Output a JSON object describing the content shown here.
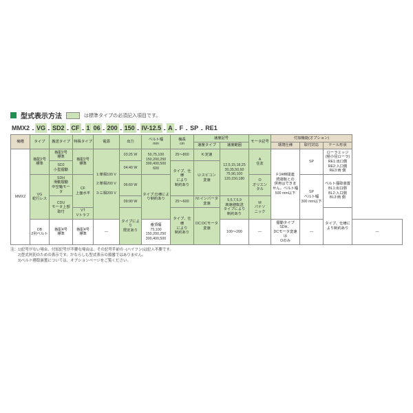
{
  "title": "型式表示方法",
  "legend": "は標準タイプの必須記入項目です。",
  "model_parts": [
    {
      "t": "MMX2",
      "g": false,
      "dash": true
    },
    {
      "t": "VG",
      "g": true,
      "dash": true
    },
    {
      "t": "SD2",
      "g": true,
      "dash": true
    },
    {
      "t": "CF",
      "g": true,
      "dash": true
    },
    {
      "t": "1",
      "g": true,
      "dash": false
    },
    {
      "t": "06",
      "g": true,
      "dash": true
    },
    {
      "t": "200",
      "g": true,
      "dash": true
    },
    {
      "t": "150",
      "g": true,
      "dash": true
    },
    {
      "t": "IV-12.5",
      "g": true,
      "dash": true
    },
    {
      "t": "A",
      "g": true,
      "dash": true
    },
    {
      "t": "F",
      "g": false,
      "dash": true
    },
    {
      "t": "SP",
      "g": false,
      "dash": true
    },
    {
      "t": "RE1",
      "g": false,
      "dash": false
    }
  ],
  "headers": {
    "kishu": "機種",
    "type": "タイプ",
    "sokoshiki": "搬送タイプ",
    "tokushu": "特殊タイプ",
    "densho": "電源",
    "shutsuryoku": "出力",
    "belt": "ベルト幅\nmm",
    "kikochou": "機長\ncm",
    "sokudo": "速度記号",
    "sokudo_type": "速度タイプ",
    "sokudo_hani": "速度範囲",
    "motor": "モータ記号",
    "fuka": "付加機能(オプション)",
    "kankyo": "環境仕様",
    "toritsuke": "取付対応",
    "tail": "テール形状"
  },
  "cells": {
    "mmx2": "MMX2",
    "kago2_std": "格配2号\n標準",
    "vg_jakoresu": "VG\n蛇行レス",
    "db_2belt": "DB\n2列ベルト",
    "kago2_std2": "格配2号\n標準",
    "sd2_kogata": "SD2\n小型摺動",
    "sdh_chukuu": "SDH\n滑動摺動\n中空軸モータ",
    "cdu_motor": "CDU\nモータ上部取付",
    "kago4_std": "格配4号\n標準",
    "kago2_std3": "格配2号\n標準",
    "cf_jousuihei": "CF\n上面水平",
    "vt_trough": "VT\nVトラフ",
    "kago4_std2": "格配4号\n標準",
    "densho_1": "1:単相100 V",
    "densho_2": "2:単相200 V",
    "densho_3": "3:三相200 V",
    "out_03": "03:25 W",
    "out_04": "04:40 W",
    "out_06": "06:60 W",
    "out_09": "09:90 W",
    "out_note": "タイプにより\n限定あり",
    "belt_vals": "50,75,100\n150,200,250\n300,400,500\n600",
    "belt_note": "タイプ,仕様によ\nり制約あり",
    "belt_bottom": "番頂幅\n75,100\n150,200,250\n300,400,500",
    "length_25_800": "25～800",
    "length_note": "タイプ、仕様\nにより\n制約あり",
    "length_25_600": "25～600",
    "length_note2": "タイプ、仕様\nにより\n制約あり",
    "length_100_200": "100～200",
    "k_tei": "K:定速",
    "u_spi": "U:スピコン\n変速",
    "iv_inv": "IV:インバータ\n変速",
    "dc_motor": "DC:DCモータ\n変速",
    "speed_range1": "12,5,15,18,25\n30,35,50,60\n75,90,100\n120,150,180",
    "speed_range2": "5,5,7,5,9\n高速値転送\nタイプにより\n制約あり",
    "motor_a": "A\n住友",
    "motor_o": "O\nオリエン\nタル",
    "motor_m": "M\nパナソ\nニック",
    "motor_note": "摺動タイプSDH、\nDCモータ変速は\nOのみ",
    "f_24h": "F:24時間連\n続運転との\n併用はできま\nせん。ベルト幅\n500 mm以下",
    "sp": "SP",
    "sp_belt": "SP\nベルト幅\n300 mm以下",
    "dash_cell": "―",
    "tail_roller": "ローラエッジ\n(極小径ローラ)\nRE1:出口側\nRE2:入口側\nRE3:両 側",
    "tail_knife": "ベルト掻取装置\nBL1:出口側\nBL2:入口側\nBL3:両 側",
    "tail_note": "タイプ、仕様に\nより制約あり"
  },
  "notes": [
    "注：1)記号がない場合、付加記号が不要な場合は、その記号手前の -(ハイフン)は記入不要です。",
    "　　2)型式判別のための表示です。かならしも型式表示の順番ではありません。",
    "　　3)ベルト掻取装置については、オプションページをご覧ください。"
  ]
}
